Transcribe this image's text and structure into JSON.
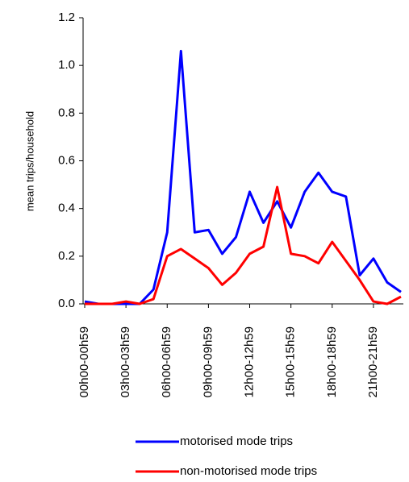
{
  "chart_data": {
    "type": "line",
    "y_label": "mean trips/household",
    "categories": [
      "00h00-00h59",
      null,
      null,
      "03h00-03h59",
      null,
      null,
      "06h00-06h59",
      null,
      null,
      "09h00-09h59",
      null,
      null,
      "12h00-12h59",
      null,
      null,
      "15h00-15h59",
      null,
      null,
      "18h00-18h59",
      null,
      null,
      "21h00-21h59",
      null,
      null
    ],
    "series": [
      {
        "name": "motorised mode trips",
        "color": "#0000ff",
        "values": [
          0.01,
          0.0,
          0.0,
          0.0,
          0.0,
          0.06,
          0.3,
          1.06,
          0.3,
          0.31,
          0.21,
          0.28,
          0.47,
          0.34,
          0.43,
          0.32,
          0.47,
          0.55,
          0.47,
          0.45,
          0.12,
          0.19,
          0.09,
          0.05
        ]
      },
      {
        "name": "non-motorised mode trips",
        "color": "#ff0000",
        "values": [
          0.0,
          0.0,
          0.0,
          0.01,
          0.0,
          0.02,
          0.2,
          0.23,
          0.19,
          0.15,
          0.08,
          0.13,
          0.21,
          0.24,
          0.49,
          0.21,
          0.2,
          0.17,
          0.26,
          0.18,
          0.1,
          0.01,
          0.0,
          0.03
        ]
      }
    ],
    "ylim": [
      0,
      1.2
    ],
    "yticks": [
      {
        "value": 0,
        "label": "0.0"
      },
      0.2,
      0.4,
      0.6,
      0.8,
      {
        "value": 1,
        "label": "1.0"
      },
      1.2
    ],
    "grid": false,
    "legend": "bottom"
  }
}
